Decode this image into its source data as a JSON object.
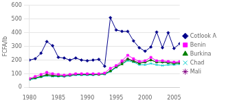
{
  "chart_data": {
    "type": "line",
    "x": [
      1980,
      1981,
      1982,
      1983,
      1984,
      1985,
      1986,
      1987,
      1988,
      1989,
      1990,
      1991,
      1992,
      1993,
      1994,
      1995,
      1996,
      1997,
      1998,
      1999,
      2000,
      2001,
      2002,
      2003,
      2004,
      2005,
      2006
    ],
    "series": [
      {
        "name": "Cotlook A",
        "color": "#00008B",
        "marker": "diamond",
        "values": [
          200,
          210,
          250,
          335,
          305,
          220,
          215,
          200,
          215,
          200,
          195,
          200,
          205,
          155,
          510,
          420,
          410,
          410,
          340,
          290,
          265,
          295,
          405,
          290,
          400,
          285,
          320
        ]
      },
      {
        "name": "Benin",
        "color": "#FF00FF",
        "marker": "square",
        "values": [
          65,
          80,
          95,
          110,
          100,
          95,
          90,
          95,
          100,
          100,
          100,
          100,
          100,
          105,
          140,
          160,
          195,
          235,
          210,
          190,
          195,
          220,
          195,
          195,
          190,
          185,
          190
        ]
      },
      {
        "name": "Burkina",
        "color": "#008000",
        "marker": "triangle",
        "values": [
          60,
          70,
          80,
          90,
          85,
          85,
          85,
          90,
          95,
          95,
          95,
          95,
          95,
          100,
          120,
          150,
          170,
          205,
          190,
          175,
          185,
          200,
          185,
          185,
          180,
          175,
          178
        ]
      },
      {
        "name": "Chad",
        "color": "#00CCCC",
        "marker": "x",
        "values": [
          55,
          65,
          75,
          85,
          80,
          80,
          80,
          85,
          90,
          90,
          90,
          90,
          95,
          95,
          115,
          145,
          170,
          195,
          185,
          165,
          165,
          175,
          165,
          160,
          165,
          165,
          170
        ]
      },
      {
        "name": "Mali",
        "color": "#800080",
        "marker": "star",
        "values": [
          60,
          70,
          80,
          95,
          90,
          85,
          82,
          88,
          95,
          95,
          95,
          95,
          95,
          100,
          120,
          150,
          185,
          210,
          195,
          180,
          185,
          200,
          185,
          185,
          185,
          180,
          182
        ]
      }
    ],
    "ylabel": "FCFA/lb",
    "xlim": [
      1980,
      2006
    ],
    "xticks": [
      1980,
      1985,
      1990,
      1995,
      2000,
      2005
    ],
    "ylim": [
      0,
      600
    ],
    "yticks": [
      0,
      100,
      200,
      300,
      400,
      500,
      600
    ],
    "grid": "y",
    "legend": "right"
  }
}
